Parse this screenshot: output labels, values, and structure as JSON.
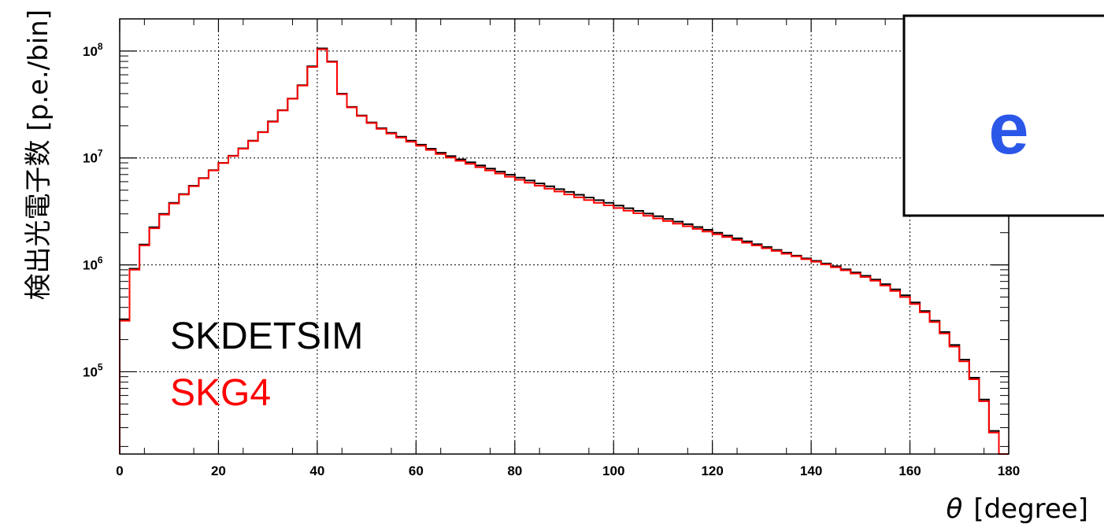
{
  "chart_data": {
    "type": "line",
    "drawstyle": "step",
    "xlabel_symbol": "θ",
    "xlabel_unit": "[degree]",
    "ylabel": "検出光電子数 [p.e./bin]",
    "xlim": [
      0,
      180
    ],
    "ylim": [
      17000,
      200000000
    ],
    "yscale": "log",
    "grid": true,
    "x_ticks": [
      "0",
      "20",
      "40",
      "60",
      "80",
      "100",
      "120",
      "140",
      "160",
      "180"
    ],
    "y_ticks": [
      {
        "base": "10",
        "exp": "5",
        "value": 100000
      },
      {
        "base": "10",
        "exp": "6",
        "value": 1000000
      },
      {
        "base": "10",
        "exp": "7",
        "value": 10000000
      },
      {
        "base": "10",
        "exp": "8",
        "value": 100000000
      }
    ],
    "bin_width": 2,
    "bin_low_edges": [
      0,
      2,
      4,
      6,
      8,
      10,
      12,
      14,
      16,
      18,
      20,
      22,
      24,
      26,
      28,
      30,
      32,
      34,
      36,
      38,
      40,
      42,
      44,
      46,
      48,
      50,
      52,
      54,
      56,
      58,
      60,
      62,
      64,
      66,
      68,
      70,
      72,
      74,
      76,
      78,
      80,
      82,
      84,
      86,
      88,
      90,
      92,
      94,
      96,
      98,
      100,
      102,
      104,
      106,
      108,
      110,
      112,
      114,
      116,
      118,
      120,
      122,
      124,
      126,
      128,
      130,
      132,
      134,
      136,
      138,
      140,
      142,
      144,
      146,
      148,
      150,
      152,
      154,
      156,
      158,
      160,
      162,
      164,
      166,
      168,
      170,
      172,
      174,
      176,
      178
    ],
    "series": [
      {
        "name": "SKDETSIM",
        "color": "#000000",
        "values": [
          310000,
          920000,
          1550000,
          2250000,
          3000000,
          3800000,
          4600000,
          5500000,
          6500000,
          7700000,
          9000000,
          10500000,
          12300000,
          14500000,
          17500000,
          22000000,
          28000000,
          36000000,
          48000000,
          72000000,
          106000000,
          80000000,
          40000000,
          30000000,
          25000000,
          21500000,
          19000000,
          17200000,
          15800000,
          14500000,
          13300000,
          12200000,
          11200000,
          10400000,
          9700000,
          9100000,
          8500000,
          7950000,
          7450000,
          6980000,
          6550000,
          6150000,
          5780000,
          5430000,
          5110000,
          4810000,
          4530000,
          4270000,
          4030000,
          3800000,
          3590000,
          3390000,
          3200000,
          3020000,
          2850000,
          2690000,
          2540000,
          2400000,
          2260000,
          2130000,
          2000000,
          1880000,
          1770000,
          1660000,
          1560000,
          1470000,
          1380000,
          1300000,
          1220000,
          1150000,
          1090000,
          1030000,
          970000,
          910000,
          850000,
          790000,
          730000,
          660000,
          590000,
          520000,
          445000,
          370000,
          300000,
          235000,
          178000,
          130000,
          88000,
          55000,
          28000,
          15000
        ]
      },
      {
        "name": "SKG4",
        "color": "#ff0000",
        "values": [
          300000,
          900000,
          1520000,
          2200000,
          2950000,
          3750000,
          4550000,
          5450000,
          6450000,
          7650000,
          8950000,
          10450000,
          12200000,
          14400000,
          17400000,
          21800000,
          27800000,
          35800000,
          47500000,
          71000000,
          104000000,
          79000000,
          39500000,
          29700000,
          24700000,
          21200000,
          18700000,
          16900000,
          15500000,
          14200000,
          13000000,
          11900000,
          10900000,
          10100000,
          9400000,
          8800000,
          8200000,
          7650000,
          7150000,
          6680000,
          6250000,
          5860000,
          5500000,
          5160000,
          4850000,
          4560000,
          4290000,
          4040000,
          3810000,
          3600000,
          3400000,
          3210000,
          3040000,
          2880000,
          2720000,
          2570000,
          2430000,
          2300000,
          2170000,
          2050000,
          1930000,
          1820000,
          1710000,
          1610000,
          1520000,
          1430000,
          1350000,
          1270000,
          1200000,
          1130000,
          1070000,
          1010000,
          950000,
          890000,
          830000,
          770000,
          710000,
          640000,
          570000,
          500000,
          430000,
          360000,
          292000,
          228000,
          172000,
          125000,
          85000,
          53000,
          27000,
          14500
        ]
      }
    ]
  },
  "legend": {
    "entries": [
      {
        "label": "SKDETSIM",
        "color": "#000000"
      },
      {
        "label": "SKG4",
        "color": "#ff0000"
      }
    ]
  },
  "badge": {
    "label": "e",
    "color": "#2b57e8"
  }
}
